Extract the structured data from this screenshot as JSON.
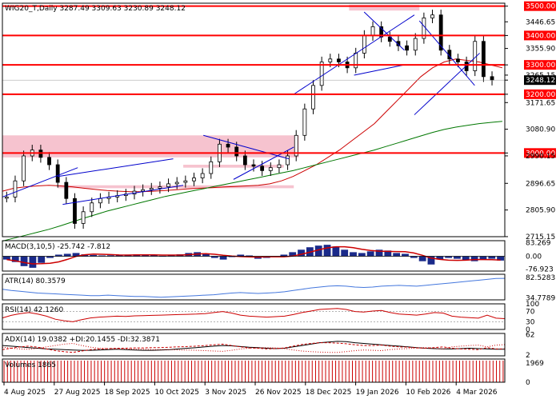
{
  "chart_data": [
    {
      "panel": "price",
      "type": "candlestick",
      "header": "WIG20_T,Daily  3287.49 3309.63 3230.89 3248.12",
      "y_ticks": [
        "3500.00",
        "3446.65",
        "3400.00",
        "3355.90",
        "3300.00",
        "3265.15",
        "3248.12",
        "3200.00",
        "3171.65",
        "3080.90",
        "3000.00",
        "2990.15",
        "2896.65",
        "2805.90",
        "2715.15"
      ],
      "ylim": [
        2715,
        3510
      ],
      "last_price": 3248.12,
      "levels": [
        3500,
        3400,
        3300,
        3200,
        3000
      ],
      "level_color": "#ff0000",
      "zones": [
        {
          "x_from": 0,
          "x_to": 0.59,
          "y_from": 2985,
          "y_to": 3060
        },
        {
          "x_from": 0.11,
          "x_to": 0.58,
          "y_from": 2880,
          "y_to": 2890
        },
        {
          "x_from": 0.36,
          "x_to": 0.56,
          "y_from": 2950,
          "y_to": 2960
        },
        {
          "x_from": 0.69,
          "x_to": 0.83,
          "y_from": 3485,
          "y_to": 3505
        }
      ],
      "zone_color": "#f6c3cf",
      "series": [
        {
          "kind": "ma",
          "color": "#cc0000",
          "values": [
            2870,
            2880,
            2885,
            2888,
            2890,
            2888,
            2885,
            2880,
            2876,
            2872,
            2870,
            2868,
            2868,
            2870,
            2872,
            2875,
            2878,
            2880,
            2882,
            2884,
            2886,
            2888,
            2890,
            2895,
            2905,
            2920,
            2940,
            2960,
            2985,
            3010,
            3040,
            3070,
            3100,
            3140,
            3180,
            3220,
            3260,
            3290,
            3310,
            3320,
            3315,
            3310,
            3300,
            3290
          ]
        },
        {
          "kind": "ma",
          "color": "#007700",
          "values": [
            2700,
            2710,
            2720,
            2730,
            2740,
            2752,
            2765,
            2778,
            2790,
            2802,
            2812,
            2822,
            2832,
            2842,
            2852,
            2860,
            2868,
            2876,
            2884,
            2892,
            2900,
            2908,
            2916,
            2924,
            2932,
            2940,
            2950,
            2960,
            2970,
            2980,
            2990,
            3000,
            3010,
            3022,
            3034,
            3046,
            3058,
            3070,
            3080,
            3088,
            3094,
            3100,
            3104,
            3108
          ]
        }
      ],
      "closes": [
        2850,
        2905,
        2990,
        3010,
        2985,
        2960,
        2900,
        2845,
        2760,
        2800,
        2830,
        2845,
        2850,
        2855,
        2860,
        2870,
        2875,
        2880,
        2885,
        2895,
        2900,
        2905,
        2915,
        2930,
        2970,
        3030,
        3020,
        2990,
        2960,
        2955,
        2940,
        2950,
        2960,
        2990,
        3060,
        3150,
        3230,
        3310,
        3320,
        3310,
        3290,
        3340,
        3400,
        3430,
        3395,
        3380,
        3365,
        3350,
        3390,
        3460,
        3470,
        3350,
        3320,
        3310,
        3280,
        3380,
        3260,
        3248
      ],
      "trendlines": [
        {
          "color": "#0000cc",
          "points": [
            [
              0,
              2850
            ],
            [
              0.15,
              2950
            ]
          ]
        },
        {
          "color": "#0000cc",
          "points": [
            [
              0.12,
              2825
            ],
            [
              0.36,
              2890
            ]
          ]
        },
        {
          "color": "#0000cc",
          "points": [
            [
              0.11,
              2920
            ],
            [
              0.34,
              2980
            ]
          ]
        },
        {
          "color": "#0000cc",
          "points": [
            [
              0.4,
              3060
            ],
            [
              0.57,
              2980
            ]
          ]
        },
        {
          "color": "#0000cc",
          "points": [
            [
              0.46,
              2910
            ],
            [
              0.58,
              3020
            ]
          ]
        },
        {
          "color": "#0000cc",
          "points": [
            [
              0.58,
              3200
            ],
            [
              0.82,
              3470
            ]
          ]
        },
        {
          "color": "#0000cc",
          "points": [
            [
              0.7,
              3265
            ],
            [
              0.8,
              3300
            ]
          ]
        },
        {
          "color": "#0000cc",
          "points": [
            [
              0.72,
              3480
            ],
            [
              0.8,
              3350
            ]
          ]
        },
        {
          "color": "#0000cc",
          "points": [
            [
              0.82,
              3130
            ],
            [
              0.95,
              3340
            ]
          ]
        },
        {
          "color": "#0000cc",
          "points": [
            [
              0.83,
              3450
            ],
            [
              0.94,
              3230
            ]
          ]
        }
      ]
    },
    {
      "panel": "macd",
      "type": "histogram",
      "header": "MACD(3,10,5) -25.742 -7.812",
      "y_ticks": [
        "83.269",
        "0.00",
        "-76.923"
      ],
      "ylim": [
        -90,
        95
      ],
      "values": [
        -20,
        -35,
        -60,
        -70,
        -40,
        -10,
        10,
        15,
        20,
        12,
        8,
        5,
        6,
        8,
        10,
        12,
        8,
        5,
        3,
        8,
        12,
        20,
        25,
        15,
        -10,
        -20,
        -5,
        10,
        5,
        -15,
        -10,
        -5,
        10,
        25,
        40,
        55,
        65,
        70,
        60,
        40,
        25,
        20,
        30,
        40,
        35,
        20,
        15,
        -10,
        -30,
        -50,
        -20,
        -10,
        -15,
        -25,
        -30,
        -20,
        -15,
        -26
      ],
      "signal_color": "#cc0000"
    },
    {
      "panel": "atr",
      "type": "line",
      "header": "ATR(14) 80.3579",
      "y_ticks": [
        "82.5283",
        "34.7789"
      ],
      "ylim": [
        30,
        90
      ],
      "values": [
        55,
        52,
        50,
        48,
        46,
        45,
        44,
        43,
        42,
        41,
        40,
        40,
        41,
        40,
        39,
        38,
        38,
        37,
        36,
        37,
        38,
        39,
        40,
        41,
        42,
        44,
        46,
        47,
        46,
        45,
        46,
        47,
        49,
        52,
        55,
        58,
        60,
        62,
        63,
        62,
        60,
        59,
        60,
        62,
        63,
        64,
        63,
        62,
        64,
        66,
        68,
        70,
        72,
        74,
        76,
        78,
        80,
        80.36
      ],
      "color": "#4477dd"
    },
    {
      "panel": "rsi",
      "type": "line",
      "header": "RSI(14) 42.1260",
      "y_ticks": [
        "100",
        "70",
        "30",
        "0"
      ],
      "ylim": [
        0,
        100
      ],
      "values": [
        45,
        55,
        62,
        66,
        60,
        52,
        40,
        34,
        30,
        38,
        45,
        48,
        50,
        52,
        51,
        53,
        54,
        55,
        56,
        57,
        58,
        59,
        60,
        62,
        66,
        70,
        64,
        56,
        52,
        50,
        48,
        50,
        52,
        58,
        66,
        72,
        78,
        80,
        82,
        78,
        70,
        68,
        72,
        74,
        66,
        60,
        58,
        56,
        60,
        66,
        64,
        52,
        48,
        46,
        44,
        56,
        44,
        42.13
      ],
      "color": "#cc0000"
    },
    {
      "panel": "adx",
      "type": "line",
      "header": "ADX(14) 19.0382 +DI:20.1455 -DI:32.3871",
      "y_ticks": [
        "62",
        "2"
      ],
      "ylim": [
        0,
        65
      ],
      "series": [
        {
          "name": "ADX",
          "color": "#000000",
          "values": [
            30,
            28,
            26,
            24,
            22,
            20,
            19,
            18,
            17,
            16,
            16,
            17,
            18,
            19,
            18,
            17,
            16,
            16,
            17,
            18,
            20,
            22,
            24,
            26,
            28,
            30,
            29,
            27,
            25,
            24,
            22,
            21,
            22,
            26,
            30,
            34,
            38,
            40,
            42,
            41,
            38,
            36,
            34,
            32,
            30,
            28,
            26,
            24,
            22,
            21,
            20,
            20,
            21,
            22,
            21,
            20,
            19,
            19.04
          ]
        },
        {
          "name": "+DI",
          "color": "#cc0000",
          "values": [
            18,
            22,
            26,
            28,
            25,
            20,
            15,
            12,
            10,
            14,
            18,
            20,
            21,
            22,
            22,
            23,
            23,
            24,
            24,
            25,
            26,
            27,
            28,
            30,
            32,
            34,
            30,
            26,
            23,
            22,
            20,
            21,
            23,
            28,
            33,
            36,
            38,
            38,
            37,
            35,
            32,
            30,
            30,
            31,
            28,
            26,
            25,
            23,
            22,
            24,
            26,
            22,
            20,
            19,
            18,
            24,
            20,
            20.15
          ]
        },
        {
          "name": "-DI",
          "color": "#cc0000",
          "values": [
            25,
            22,
            20,
            19,
            22,
            26,
            30,
            34,
            36,
            30,
            25,
            22,
            21,
            20,
            20,
            19,
            19,
            18,
            18,
            18,
            17,
            17,
            16,
            15,
            14,
            13,
            16,
            20,
            22,
            23,
            24,
            23,
            21,
            17,
            14,
            12,
            11,
            10,
            10,
            12,
            15,
            17,
            16,
            15,
            18,
            20,
            21,
            23,
            24,
            22,
            20,
            26,
            28,
            30,
            31,
            26,
            31,
            32.39
          ]
        }
      ]
    },
    {
      "panel": "volume",
      "type": "bar",
      "header": "Volumes 1865",
      "y_ticks": [
        "1969",
        "0"
      ],
      "ylim": [
        0,
        2000
      ],
      "values": [
        1865
      ],
      "color": "#cc0000"
    }
  ],
  "x_axis": {
    "labels": [
      "4 Aug 2025",
      "27 Aug 2025",
      "18 Sep 2025",
      "10 Oct 2025",
      "3 Nov 2025",
      "26 Nov 2025",
      "18 Dec 2025",
      "19 Jan 2026",
      "10 Feb 2026",
      "4 Mar 2026"
    ]
  },
  "panel_headers": {
    "price": "WIG20_T,Daily  3287.49 3309.63 3230.89 3248.12",
    "macd": "MACD(3,10,5) -25.742 -7.812",
    "atr": "ATR(14) 80.3579",
    "rsi": "RSI(14) 42.1260",
    "adx": "ADX(14) 19.0382 +DI:20.1455 -DI:32.3871",
    "volume": "Volumes 1865"
  }
}
